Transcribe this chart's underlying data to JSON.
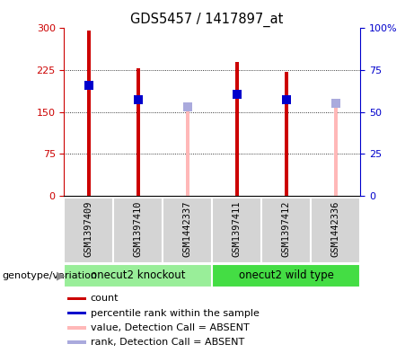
{
  "title": "GDS5457 / 1417897_at",
  "samples": [
    "GSM1397409",
    "GSM1397410",
    "GSM1442337",
    "GSM1397411",
    "GSM1397412",
    "GSM1442336"
  ],
  "bar_values": [
    296,
    228,
    152,
    240,
    222,
    165
  ],
  "bar_colors": [
    "#cc0000",
    "#cc0000",
    "#ffb8b8",
    "#cc0000",
    "#cc0000",
    "#ffb8b8"
  ],
  "rank_values_left": [
    198,
    172,
    160,
    182,
    172,
    165
  ],
  "rank_colors": [
    "#0000cc",
    "#0000cc",
    "#aaaadd",
    "#0000cc",
    "#0000cc",
    "#aaaadd"
  ],
  "absent_flags": [
    false,
    false,
    true,
    false,
    false,
    true
  ],
  "ylim_left": [
    0,
    300
  ],
  "ylim_right": [
    0,
    100
  ],
  "yticks_left": [
    0,
    75,
    150,
    225,
    300
  ],
  "yticks_right": [
    0,
    25,
    50,
    75,
    100
  ],
  "ytick_labels_right": [
    "0",
    "25",
    "50",
    "75",
    "100%"
  ],
  "ylabel_left_color": "#cc0000",
  "ylabel_right_color": "#0000cc",
  "group_ranges": [
    [
      0,
      2
    ],
    [
      3,
      5
    ]
  ],
  "group_names": [
    "onecut2 knockout",
    "onecut2 wild type"
  ],
  "group_colors": [
    "#99ee99",
    "#44dd44"
  ],
  "bar_width": 0.07,
  "rank_marker_size": 60,
  "legend_items": [
    {
      "label": "count",
      "color": "#cc0000"
    },
    {
      "label": "percentile rank within the sample",
      "color": "#0000cc"
    },
    {
      "label": "value, Detection Call = ABSENT",
      "color": "#ffb8b8"
    },
    {
      "label": "rank, Detection Call = ABSENT",
      "color": "#aaaadd"
    }
  ],
  "fig_width": 4.61,
  "fig_height": 3.93,
  "dpi": 100
}
